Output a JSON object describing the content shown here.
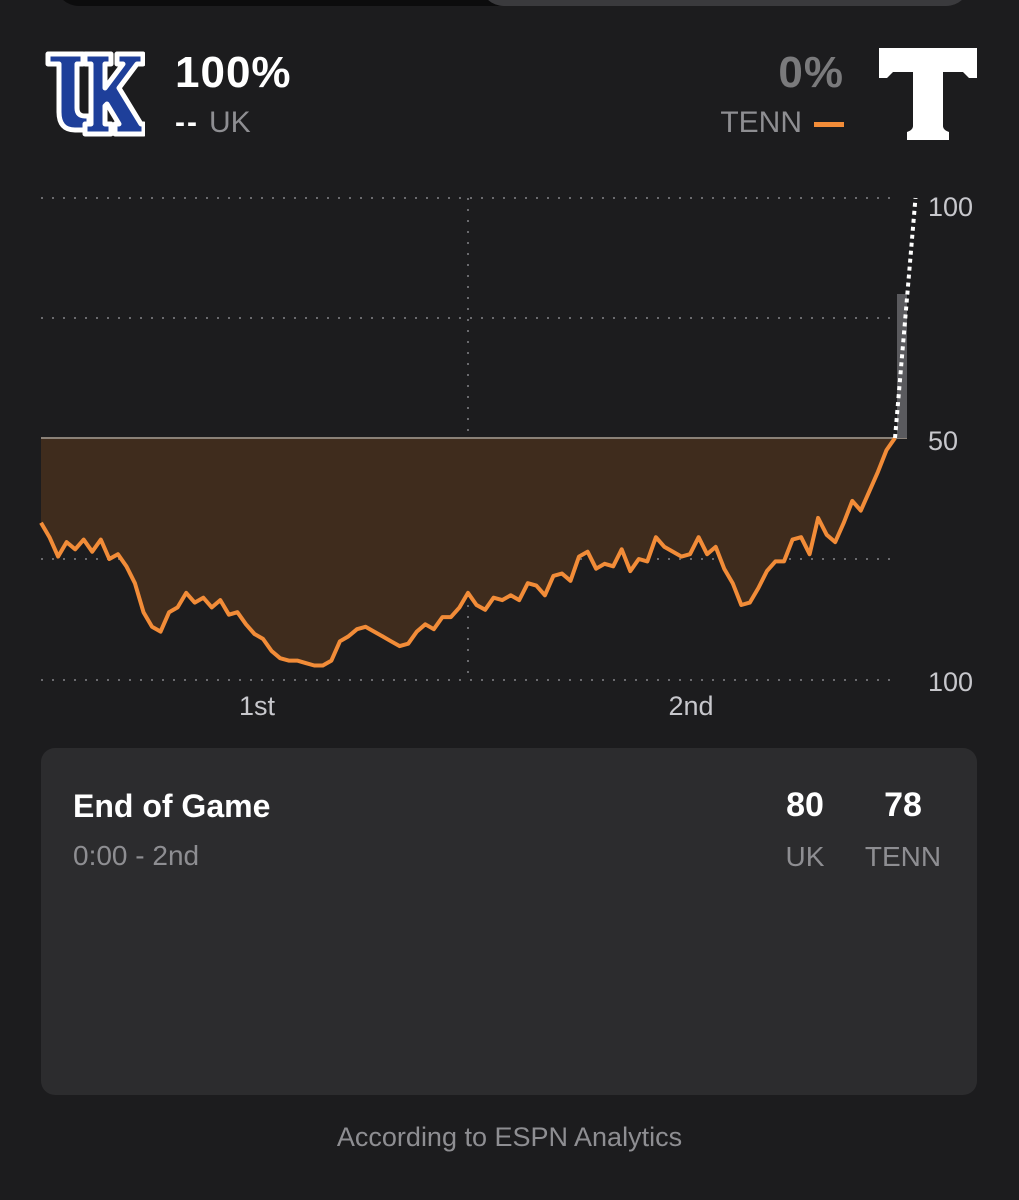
{
  "teams": {
    "away": {
      "abbr": "UK",
      "win_pct": "100%",
      "line_marker": "--",
      "line_color": "#ffffff"
    },
    "home": {
      "abbr": "TENN",
      "win_pct": "0%",
      "line_color": "#f28c38"
    }
  },
  "chart_data": {
    "type": "line",
    "title": "",
    "y_ticks": [
      "100",
      "50",
      "100"
    ],
    "x_ticks": [
      "1st",
      "2nd"
    ],
    "ylim": [
      -100,
      100
    ],
    "grid": true,
    "series": [
      {
        "name": "TENN",
        "color": "#f28c38",
        "fill": "#3f2c1d",
        "x": [
          0,
          1,
          2,
          3,
          4,
          5,
          6,
          7,
          8,
          9,
          10,
          11,
          12,
          13,
          14,
          15,
          16,
          17,
          18,
          19,
          20,
          21,
          22,
          23,
          24,
          25,
          26,
          27,
          28,
          29,
          30,
          31,
          32,
          33,
          34,
          35,
          36,
          37,
          38,
          39,
          40,
          41,
          42,
          43,
          44,
          45,
          46,
          47,
          48,
          49,
          50,
          51,
          52,
          53,
          54,
          55,
          56,
          57,
          58,
          59,
          60,
          61,
          62,
          63,
          64,
          65,
          66,
          67,
          68,
          69,
          70,
          71,
          72,
          73,
          74,
          75,
          76,
          77,
          78,
          79,
          80,
          81,
          82,
          83,
          84,
          85,
          86,
          87,
          88,
          89,
          90,
          91,
          92,
          93,
          94,
          95,
          96,
          97,
          98,
          99,
          100
        ],
        "y": [
          -35,
          -41,
          -49,
          -43,
          -46,
          -42,
          -47,
          -42,
          -50,
          -48,
          -53,
          -60,
          -72,
          -78,
          -80,
          -72,
          -70,
          -64,
          -68,
          -66,
          -70,
          -67,
          -73,
          -72,
          -77,
          -81,
          -83,
          -88,
          -91,
          -92,
          -92,
          -93,
          -94,
          -94,
          -92,
          -84,
          -82,
          -79,
          -78,
          -80,
          -82,
          -84,
          -86,
          -85,
          -80,
          -77,
          -79,
          -74,
          -74,
          -70,
          -64,
          -69,
          -71,
          -66,
          -67,
          -65,
          -67,
          -60,
          -61,
          -65,
          -57,
          -56,
          -59,
          -49,
          -47,
          -54,
          -52,
          -53,
          -46,
          -55,
          -50,
          -51,
          -41,
          -45,
          -47,
          -49,
          -48,
          -41,
          -48,
          -45,
          -54,
          -60,
          -69,
          -68,
          -62,
          -55,
          -51,
          -51,
          -42,
          -41,
          -48,
          -33,
          -40,
          -43,
          -35,
          -26,
          -30,
          -22,
          -14,
          -5,
          0
        ]
      },
      {
        "name": "UK",
        "color": "#ffffff",
        "x": [
          100,
          100.5,
          101
        ],
        "y": [
          0,
          50,
          100
        ]
      }
    ]
  },
  "status": {
    "title": "End of Game",
    "time": "0:00 - 2nd"
  },
  "score": {
    "away": {
      "score": "80",
      "abbr": "UK"
    },
    "home": {
      "score": "78",
      "abbr": "TENN"
    }
  },
  "footer": "According to ESPN Analytics"
}
